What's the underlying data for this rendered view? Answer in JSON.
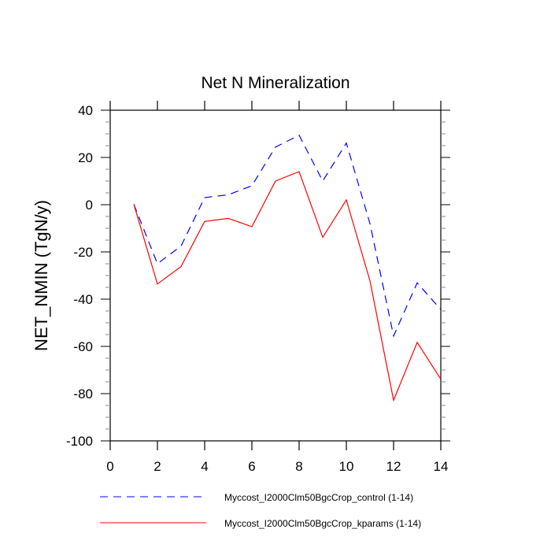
{
  "chart_data": {
    "type": "line",
    "title": "Net N Mineralization",
    "xlabel": "",
    "ylabel": "NET_NMIN  (TgN/y)",
    "xlim": [
      0,
      14
    ],
    "ylim": [
      -100,
      40
    ],
    "xticks": [
      0,
      2,
      4,
      6,
      8,
      10,
      12,
      14
    ],
    "yticks": [
      40,
      20,
      0,
      -20,
      -40,
      -60,
      -80,
      -100
    ],
    "grid": false,
    "legend_position": "bottom",
    "x": [
      1,
      2,
      3,
      4,
      5,
      6,
      7,
      8,
      9,
      10,
      11,
      12,
      13,
      14
    ],
    "series": [
      {
        "name": "Myccost_I2000Clm50BgcCrop_control (1-14)",
        "color": "#0000ff",
        "style": "dashed",
        "values": [
          0.2,
          -25,
          -17.5,
          3,
          4.2,
          8,
          24.4,
          29.4,
          10,
          26.1,
          -8,
          -55.6,
          -33.1,
          -44.4
        ]
      },
      {
        "name": "Myccost_I2000Clm50BgcCrop_kparams (1-14)",
        "color": "#ff0000",
        "style": "solid",
        "values": [
          0.2,
          -33.6,
          -26.2,
          -7.1,
          -5.8,
          -9.3,
          10,
          14,
          -13.8,
          2,
          -32.2,
          -82.8,
          -58.3,
          -73.9
        ]
      }
    ]
  }
}
